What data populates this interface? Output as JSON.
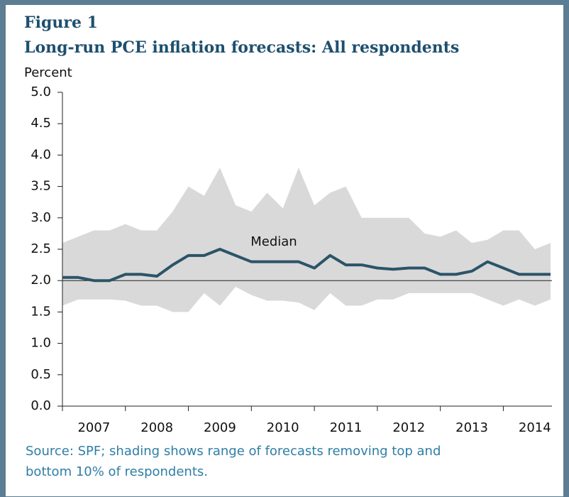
{
  "chart_data": {
    "type": "line",
    "figure_label": "Figure 1",
    "title": "Long-run PCE inflation forecasts: All respondents",
    "y_axis_label": "Percent",
    "annotation": "Median",
    "source": "Source: SPF; shading shows range of forecasts removing top and bottom 10% of respondents.",
    "x": [
      2007,
      2007.25,
      2007.5,
      2007.75,
      2008,
      2008.25,
      2008.5,
      2008.75,
      2009,
      2009.25,
      2009.5,
      2009.75,
      2010,
      2010.25,
      2010.5,
      2010.75,
      2011,
      2011.25,
      2011.5,
      2011.75,
      2012,
      2012.25,
      2012.5,
      2012.75,
      2013,
      2013.25,
      2013.5,
      2013.75,
      2014,
      2014.25,
      2014.5,
      2014.75
    ],
    "series": [
      {
        "name": "Median",
        "color": "#2b5468",
        "values": [
          2.05,
          2.05,
          2.0,
          2.0,
          2.1,
          2.1,
          2.07,
          2.25,
          2.4,
          2.4,
          2.5,
          2.4,
          2.3,
          2.3,
          2.3,
          2.3,
          2.2,
          2.4,
          2.25,
          2.25,
          2.2,
          2.18,
          2.2,
          2.2,
          2.1,
          2.1,
          2.15,
          2.3,
          2.2,
          2.1,
          2.1,
          2.1
        ]
      }
    ],
    "band": {
      "color": "#d9d9d9",
      "upper": [
        2.6,
        2.7,
        2.8,
        2.8,
        2.9,
        2.8,
        2.8,
        3.1,
        3.5,
        3.35,
        3.8,
        3.2,
        3.1,
        3.4,
        3.15,
        3.8,
        3.2,
        3.4,
        3.5,
        3.0,
        3.0,
        3.0,
        3.0,
        2.75,
        2.7,
        2.8,
        2.6,
        2.65,
        2.8,
        2.8,
        2.5,
        2.6
      ],
      "lower": [
        1.6,
        1.7,
        1.7,
        1.7,
        1.68,
        1.6,
        1.6,
        1.5,
        1.5,
        1.8,
        1.6,
        1.9,
        1.77,
        1.68,
        1.68,
        1.65,
        1.53,
        1.8,
        1.6,
        1.6,
        1.7,
        1.7,
        1.8,
        1.8,
        1.8,
        1.8,
        1.8,
        1.7,
        1.6,
        1.7,
        1.6,
        1.7
      ]
    },
    "hline": 2,
    "xlim": [
      2007,
      2014.75
    ],
    "xticks": [
      2007,
      2008,
      2009,
      2010,
      2011,
      2012,
      2013,
      2014
    ],
    "ylim": [
      0,
      5
    ],
    "yticks": [
      {
        "value": 0,
        "label": "0.0"
      },
      0.5,
      {
        "value": 1,
        "label": "1.0"
      },
      1.5,
      {
        "value": 2,
        "label": "2.0"
      },
      2.5,
      {
        "value": 3,
        "label": "3.0"
      },
      3.5,
      {
        "value": 4,
        "label": "4.0"
      },
      4.5,
      {
        "value": 5,
        "label": "5.0"
      }
    ]
  }
}
